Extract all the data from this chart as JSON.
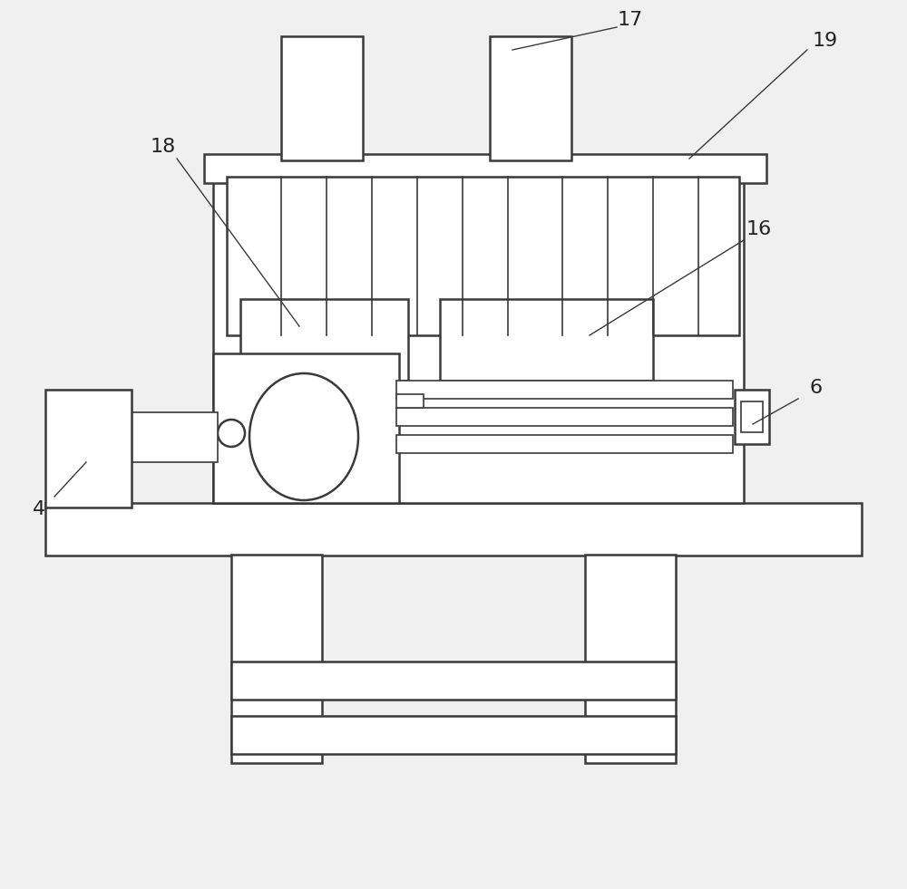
{
  "bg_color": "#f0f0f0",
  "line_color": "#3a3a3a",
  "lw": 1.8,
  "lw_thin": 1.2,
  "label_fontsize": 15,
  "label_color": "#222222"
}
